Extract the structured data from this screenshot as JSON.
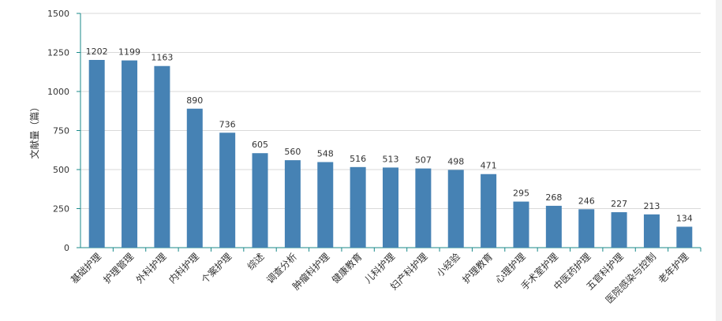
{
  "chart_data": {
    "type": "bar",
    "ylabel": "文献量（篇）",
    "xlabel": "",
    "ylim": [
      0,
      1500
    ],
    "yticks": [
      0,
      250,
      500,
      750,
      1000,
      1250,
      1500
    ],
    "grid": true,
    "categories": [
      "基础护理",
      "护理管理",
      "外科护理",
      "内科护理",
      "个案护理",
      "综述",
      "调查分析",
      "肿瘤科护理",
      "健康教育",
      "儿科护理",
      "妇产科护理",
      "小经验",
      "护理教育",
      "心理护理",
      "手术室护理",
      "中医药护理",
      "五官科护理",
      "医院感染与控制",
      "老年护理"
    ],
    "values": [
      1202,
      1199,
      1163,
      890,
      736,
      605,
      560,
      548,
      516,
      513,
      507,
      498,
      471,
      295,
      268,
      246,
      227,
      213,
      134
    ],
    "colors": {
      "bar": "#4682b4",
      "axis": "#1a8a8a",
      "grid": "#d9d9d9"
    }
  }
}
